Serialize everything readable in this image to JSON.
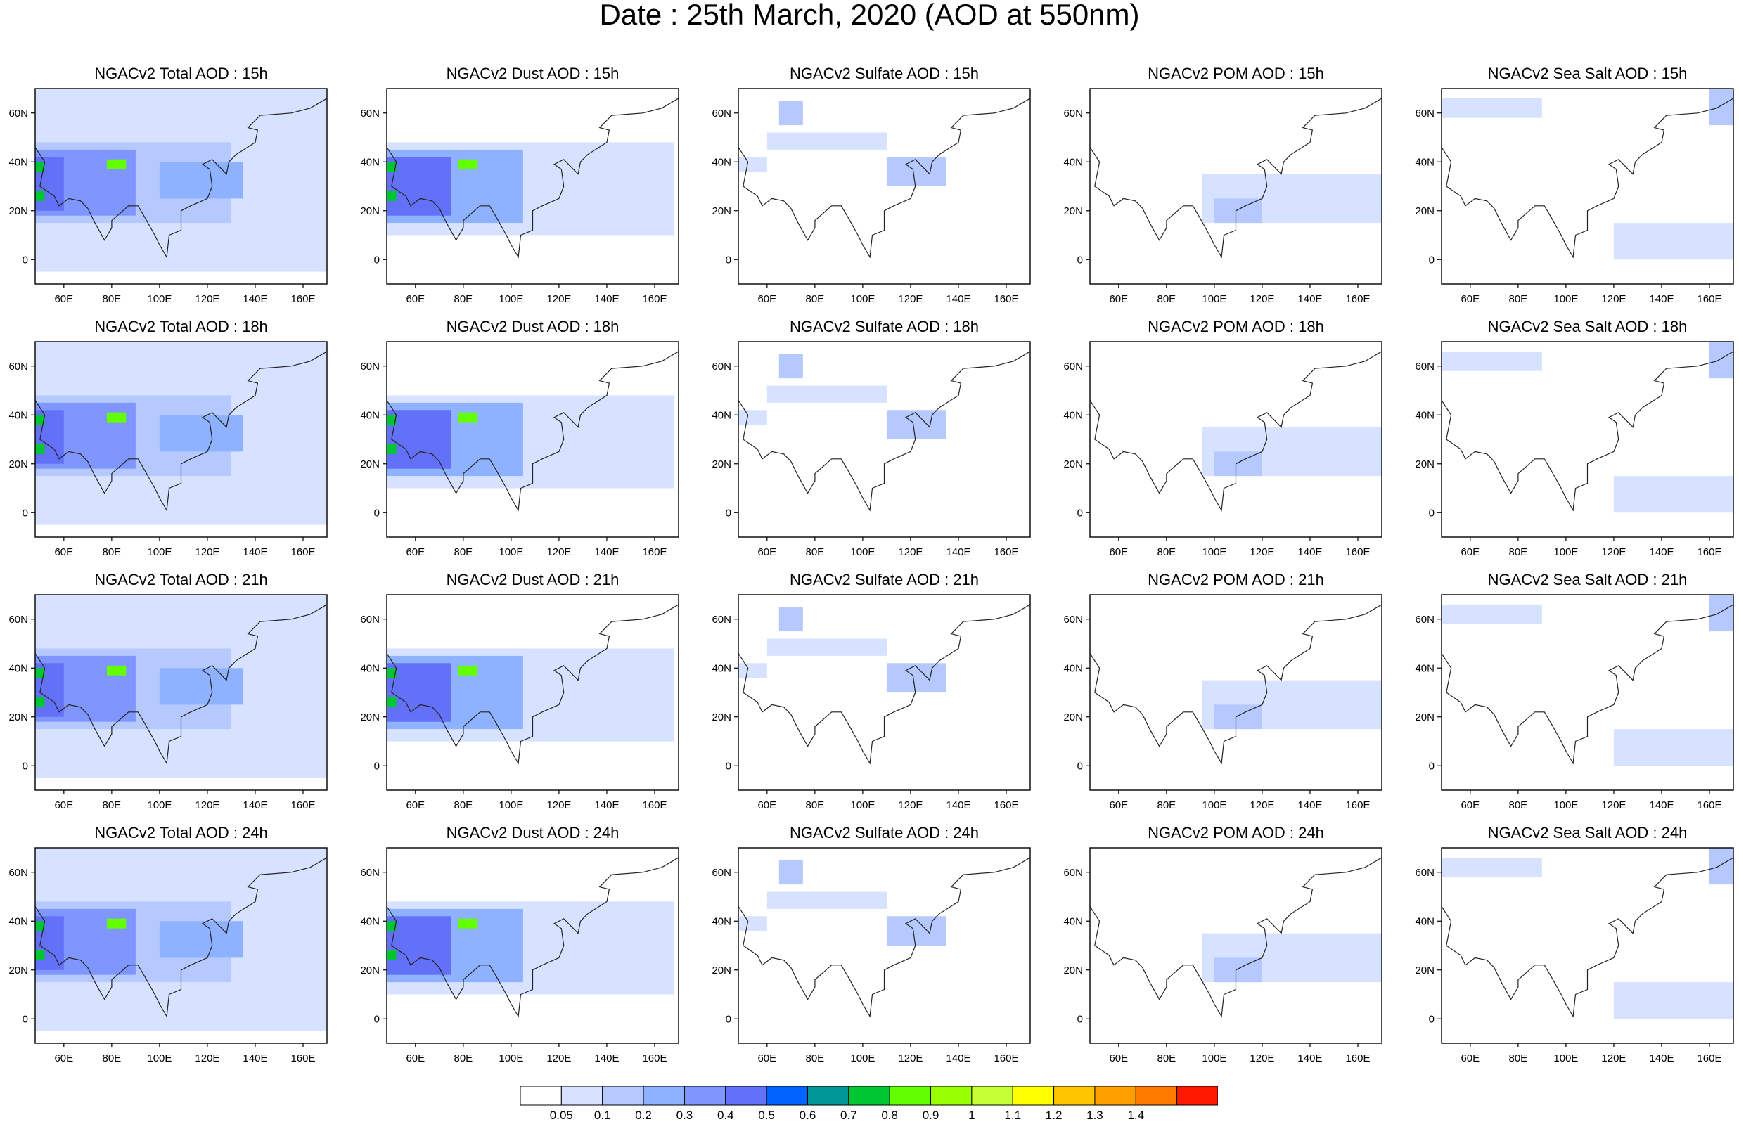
{
  "figure": {
    "title": "Date : 25th March, 2020 (AOD at 550nm)"
  },
  "axes": {
    "x_ticks": [
      "60E",
      "80E",
      "100E",
      "120E",
      "140E",
      "160E"
    ],
    "x_tick_values": [
      60,
      80,
      100,
      120,
      140,
      160
    ],
    "y_ticks": [
      "60N",
      "40N",
      "20N",
      "0"
    ],
    "y_tick_values": [
      60,
      40,
      20,
      0
    ],
    "lon_range": [
      48,
      170
    ],
    "lat_range": [
      -10,
      70
    ]
  },
  "panels": [
    [
      {
        "title": "NGACv2 Total AOD : 15h",
        "species": "total",
        "hour": 15
      },
      {
        "title": "NGACv2 Dust AOD : 15h",
        "species": "dust",
        "hour": 15
      },
      {
        "title": "NGACv2 Sulfate AOD : 15h",
        "species": "sulfate",
        "hour": 15
      },
      {
        "title": "NGACv2 POM AOD : 15h",
        "species": "pom",
        "hour": 15
      },
      {
        "title": "NGACv2 Sea Salt AOD : 15h",
        "species": "seasalt",
        "hour": 15
      }
    ],
    [
      {
        "title": "NGACv2 Total AOD : 18h",
        "species": "total",
        "hour": 18
      },
      {
        "title": "NGACv2 Dust AOD : 18h",
        "species": "dust",
        "hour": 18
      },
      {
        "title": "NGACv2 Sulfate AOD : 18h",
        "species": "sulfate",
        "hour": 18
      },
      {
        "title": "NGACv2 POM AOD : 18h",
        "species": "pom",
        "hour": 18
      },
      {
        "title": "NGACv2 Sea Salt AOD : 18h",
        "species": "seasalt",
        "hour": 18
      }
    ],
    [
      {
        "title": "NGACv2 Total AOD : 21h",
        "species": "total",
        "hour": 21
      },
      {
        "title": "NGACv2 Dust AOD : 21h",
        "species": "dust",
        "hour": 21
      },
      {
        "title": "NGACv2 Sulfate AOD : 21h",
        "species": "sulfate",
        "hour": 21
      },
      {
        "title": "NGACv2 POM AOD : 21h",
        "species": "pom",
        "hour": 21
      },
      {
        "title": "NGACv2 Sea Salt AOD : 21h",
        "species": "seasalt",
        "hour": 21
      }
    ],
    [
      {
        "title": "NGACv2 Total AOD : 24h",
        "species": "total",
        "hour": 24
      },
      {
        "title": "NGACv2 Dust AOD : 24h",
        "species": "dust",
        "hour": 24
      },
      {
        "title": "NGACv2 Sulfate AOD : 24h",
        "species": "sulfate",
        "hour": 24
      },
      {
        "title": "NGACv2 POM AOD : 24h",
        "species": "pom",
        "hour": 24
      },
      {
        "title": "NGACv2 Sea Salt  AOD : 24h",
        "species": "seasalt",
        "hour": 24
      }
    ]
  ],
  "colorbar": {
    "labels": [
      "0.05",
      "0.1",
      "0.2",
      "0.3",
      "0.4",
      "0.5",
      "0.6",
      "0.7",
      "0.8",
      "0.9",
      "1",
      "1.1",
      "1.2",
      "1.3",
      "1.4"
    ],
    "colors": [
      "#ffffff",
      "#d6e2ff",
      "#b5c9ff",
      "#8eb2ff",
      "#7f96ff",
      "#6370f8",
      "#0063ff",
      "#009696",
      "#00c633",
      "#63ff00",
      "#96ff00",
      "#c6ff33",
      "#ffff00",
      "#ffc600",
      "#ffa000",
      "#ff7c00",
      "#ff1900"
    ]
  },
  "aod_fields": {
    "total": [
      {
        "lon": [
          48,
          170
        ],
        "lat": [
          -5,
          70
        ],
        "aod": 0.08
      },
      {
        "lon": [
          48,
          130
        ],
        "lat": [
          15,
          48
        ],
        "aod": 0.15
      },
      {
        "lon": [
          48,
          90
        ],
        "lat": [
          18,
          45
        ],
        "aod": 0.3
      },
      {
        "lon": [
          48,
          60
        ],
        "lat": [
          20,
          42
        ],
        "aod": 0.45
      },
      {
        "lon": [
          48,
          52
        ],
        "lat": [
          36,
          40
        ],
        "aod": 0.75
      },
      {
        "lon": [
          48,
          52
        ],
        "lat": [
          24,
          28
        ],
        "aod": 0.75
      },
      {
        "lon": [
          78,
          86
        ],
        "lat": [
          37,
          41
        ],
        "aod": 0.8
      },
      {
        "lon": [
          100,
          135
        ],
        "lat": [
          25,
          40
        ],
        "aod": 0.25
      }
    ],
    "dust": [
      {
        "lon": [
          48,
          168
        ],
        "lat": [
          10,
          48
        ],
        "aod": 0.08
      },
      {
        "lon": [
          48,
          105
        ],
        "lat": [
          15,
          45
        ],
        "aod": 0.2
      },
      {
        "lon": [
          48,
          75
        ],
        "lat": [
          18,
          42
        ],
        "aod": 0.4
      },
      {
        "lon": [
          48,
          52
        ],
        "lat": [
          36,
          40
        ],
        "aod": 0.75
      },
      {
        "lon": [
          48,
          52
        ],
        "lat": [
          24,
          28
        ],
        "aod": 0.75
      },
      {
        "lon": [
          78,
          86
        ],
        "lat": [
          37,
          41
        ],
        "aod": 0.8
      }
    ],
    "sulfate": [
      {
        "lon": [
          65,
          75
        ],
        "lat": [
          55,
          65
        ],
        "aod": 0.12
      },
      {
        "lon": [
          60,
          110
        ],
        "lat": [
          45,
          52
        ],
        "aod": 0.08
      },
      {
        "lon": [
          110,
          135
        ],
        "lat": [
          30,
          42
        ],
        "aod": 0.12
      },
      {
        "lon": [
          48,
          60
        ],
        "lat": [
          36,
          42
        ],
        "aod": 0.08
      }
    ],
    "pom": [
      {
        "lon": [
          95,
          170
        ],
        "lat": [
          15,
          35
        ],
        "aod": 0.08
      },
      {
        "lon": [
          100,
          120
        ],
        "lat": [
          15,
          25
        ],
        "aod": 0.15
      }
    ],
    "seasalt": [
      {
        "lon": [
          48,
          90
        ],
        "lat": [
          58,
          66
        ],
        "aod": 0.08
      },
      {
        "lon": [
          160,
          170
        ],
        "lat": [
          55,
          70
        ],
        "aod": 0.12
      },
      {
        "lon": [
          120,
          170
        ],
        "lat": [
          0,
          15
        ],
        "aod": 0.08
      }
    ]
  }
}
